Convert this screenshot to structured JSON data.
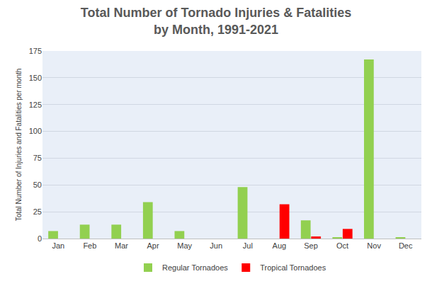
{
  "chart_data": {
    "type": "bar",
    "title": "Total Number of Tornado Injuries & Fatalities\nby Month, 1991-2021",
    "y_label": "Total Number of Injuries and Fatalities per month",
    "categories": [
      "Jan",
      "Feb",
      "Mar",
      "Apr",
      "May",
      "Jun",
      "Jul",
      "Aug",
      "Sep",
      "Oct",
      "Nov",
      "Dec"
    ],
    "series": [
      {
        "name": "Regular Tornadoes",
        "color": "#92d050",
        "values": [
          7,
          13,
          13,
          34,
          7,
          0,
          48,
          0,
          17,
          1,
          167,
          1
        ]
      },
      {
        "name": "Tropical Tornadoes",
        "color": "#ff0000",
        "values": [
          0,
          0,
          0,
          0,
          0,
          0,
          0,
          32,
          2,
          9,
          0,
          0
        ]
      }
    ],
    "ylim": [
      0,
      175
    ],
    "yticks": [
      0,
      25,
      50,
      75,
      100,
      125,
      150,
      175
    ],
    "grid": true,
    "legend": "bottom"
  }
}
